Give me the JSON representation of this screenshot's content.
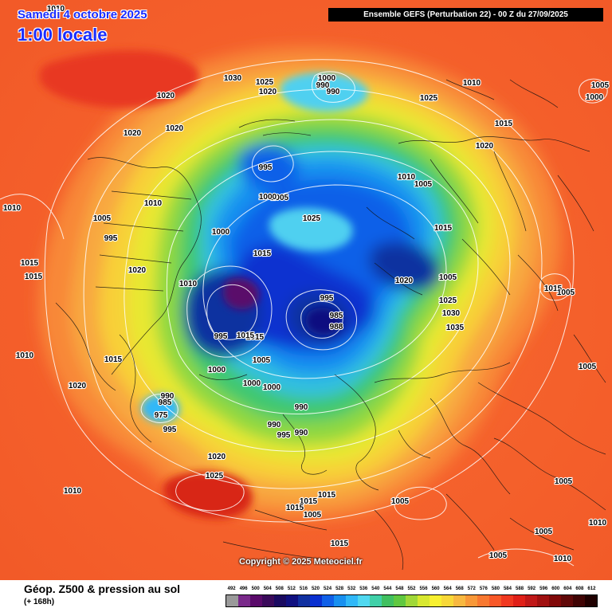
{
  "header": {
    "date": "Samedi 4 octobre 2025",
    "local_time": "1:00 locale",
    "run_info": "Ensemble GEFS  (Perturbation 22)  -  00 Z du 27/09/2025"
  },
  "copyright": "Copyright © 2025 Meteociel.fr",
  "footer": {
    "title": "Géop. Z500 & pression au sol",
    "subtitle": "(+ 168h)"
  },
  "scale": {
    "labels": [
      "492",
      "496",
      "500",
      "504",
      "508",
      "512",
      "516",
      "520",
      "524",
      "528",
      "532",
      "536",
      "540",
      "544",
      "548",
      "552",
      "556",
      "560",
      "564",
      "568",
      "572",
      "576",
      "580",
      "584",
      "588",
      "592",
      "596",
      "600",
      "604",
      "608",
      "612"
    ],
    "colors": [
      "#9a9a9a",
      "#7a2a8a",
      "#5a0a6a",
      "#3a0a5a",
      "#1a0a60",
      "#101080",
      "#1030a0",
      "#0a30d0",
      "#1060e8",
      "#1890f0",
      "#30b8f8",
      "#50d8f0",
      "#40d0a8",
      "#40c060",
      "#60c840",
      "#a0d838",
      "#d8e830",
      "#f8f030",
      "#f8d838",
      "#f8b840",
      "#f89838",
      "#f87830",
      "#f85828",
      "#f03820",
      "#e02018",
      "#c01818",
      "#a01010",
      "#800808",
      "#600808",
      "#400404",
      "#200000"
    ]
  },
  "isobar_labels": [
    {
      "t": "1010"
    },
    {
      "t": "1030"
    },
    {
      "t": "1025"
    },
    {
      "t": "1020"
    },
    {
      "t": "1000"
    },
    {
      "t": "990"
    },
    {
      "t": "990"
    },
    {
      "t": "1010"
    },
    {
      "t": "1005"
    },
    {
      "t": "1000"
    },
    {
      "t": "1020"
    },
    {
      "t": "1020"
    },
    {
      "t": "1025"
    },
    {
      "t": "1015"
    },
    {
      "t": "1020"
    },
    {
      "t": "1020"
    },
    {
      "t": "995"
    },
    {
      "t": "1010"
    },
    {
      "t": "1005"
    },
    {
      "t": "1010"
    },
    {
      "t": "1005"
    },
    {
      "t": "1010"
    },
    {
      "t": "1005"
    },
    {
      "t": "1000"
    },
    {
      "t": "1025"
    },
    {
      "t": "1015"
    },
    {
      "t": "995"
    },
    {
      "t": "1000"
    },
    {
      "t": "1015"
    },
    {
      "t": "1015"
    },
    {
      "t": "1020"
    },
    {
      "t": "1020"
    },
    {
      "t": "1005"
    },
    {
      "t": "1015"
    },
    {
      "t": "1010"
    },
    {
      "t": "1015"
    },
    {
      "t": "1005"
    },
    {
      "t": "995"
    },
    {
      "t": "985"
    },
    {
      "t": "1025"
    },
    {
      "t": "1015"
    },
    {
      "t": "988"
    },
    {
      "t": "1030"
    },
    {
      "t": "1035"
    },
    {
      "t": "1010"
    },
    {
      "t": "995"
    },
    {
      "t": "1015"
    },
    {
      "t": "1005"
    },
    {
      "t": "1005"
    },
    {
      "t": "1015"
    },
    {
      "t": "1000"
    },
    {
      "t": "1000"
    },
    {
      "t": "1000"
    },
    {
      "t": "1020"
    },
    {
      "t": "990"
    },
    {
      "t": "985"
    },
    {
      "t": "975"
    },
    {
      "t": "995"
    },
    {
      "t": "990"
    },
    {
      "t": "990"
    },
    {
      "t": "995"
    },
    {
      "t": "990"
    },
    {
      "t": "1020"
    },
    {
      "t": "1025"
    },
    {
      "t": "1010"
    },
    {
      "t": "1015"
    },
    {
      "t": "1015"
    },
    {
      "t": "1015"
    },
    {
      "t": "1005"
    },
    {
      "t": "1005"
    },
    {
      "t": "1005"
    },
    {
      "t": "1010"
    },
    {
      "t": "1015"
    },
    {
      "t": "1005"
    },
    {
      "t": "1005"
    },
    {
      "t": "1010"
    }
  ]
}
